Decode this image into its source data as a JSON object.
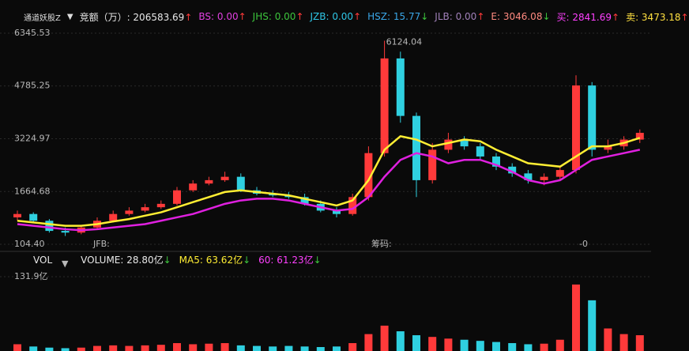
{
  "header": {
    "indicator": "通道妖股Z",
    "items": [
      {
        "text": "竞额（万）: 206583.69",
        "arrow": "↑",
        "color": "#e8e8e8"
      },
      {
        "text": "BS: 0.00",
        "arrow": "↑",
        "color": "#e040e0"
      },
      {
        "text": "JHS: 0.00",
        "arrow": "↑",
        "color": "#3cc43c"
      },
      {
        "text": "JZB: 0.00",
        "arrow": "↑",
        "color": "#2fc6e6"
      },
      {
        "text": "HSZ: 15.77",
        "arrow": "↓",
        "color": "#3aa7e8"
      },
      {
        "text": "JLB: 0.00",
        "arrow": "↑",
        "color": "#a080b8"
      },
      {
        "text": "E: 3046.08",
        "arrow": "↓",
        "color": "#ff8a80"
      },
      {
        "text": "买: 2841.69",
        "arrow": "↑",
        "color": "#ff40ff"
      },
      {
        "text": "卖: 3473.18",
        "arrow": "↑",
        "color": "#ffe040"
      }
    ]
  },
  "chart_data": {
    "type": "candlestick",
    "ylim": [
      104.4,
      6345.53
    ],
    "yticks": [
      6345.53,
      4785.25,
      3224.97,
      1664.68,
      {
        "value": 104.4,
        "label": "104.40"
      }
    ],
    "grid": true,
    "up_color": "#ff3a3a",
    "down_color": "#2fd0e0",
    "open": [
      900,
      1000,
      800,
      500,
      450,
      600,
      800,
      1000,
      1100,
      1200,
      1300,
      1700,
      1900,
      2000,
      2100,
      1700,
      1600,
      1550,
      1500,
      1300,
      1100,
      1000,
      1500,
      2800,
      5600,
      3900,
      2000,
      2900,
      3200,
      3000,
      2700,
      2400,
      2200,
      2000,
      2100,
      2300,
      4800,
      2900,
      3000,
      3200
    ],
    "high": [
      1100,
      1050,
      850,
      600,
      650,
      900,
      1100,
      1200,
      1300,
      1400,
      1800,
      2000,
      2100,
      2250,
      2200,
      1800,
      1700,
      1650,
      1600,
      1400,
      1200,
      1600,
      3000,
      6124.04,
      5800,
      4000,
      3100,
      3400,
      3300,
      3100,
      2800,
      2500,
      2300,
      2200,
      2400,
      5100,
      4900,
      3200,
      3300,
      3500
    ],
    "low": [
      800,
      750,
      450,
      350,
      400,
      550,
      750,
      950,
      1050,
      1150,
      1250,
      1650,
      1850,
      1950,
      1650,
      1550,
      1500,
      1450,
      1250,
      1050,
      900,
      950,
      1400,
      2700,
      3700,
      1500,
      1900,
      2800,
      2900,
      2600,
      2300,
      2100,
      1900,
      1850,
      2000,
      2200,
      2700,
      2800,
      2900,
      3100
    ],
    "close": [
      1000,
      800,
      500,
      450,
      600,
      800,
      1000,
      1100,
      1200,
      1300,
      1700,
      1900,
      2000,
      2100,
      1700,
      1600,
      1550,
      1500,
      1300,
      1100,
      1000,
      1500,
      2800,
      5600,
      3900,
      2000,
      2900,
      3200,
      3000,
      2700,
      2400,
      2200,
      2000,
      2100,
      2300,
      4800,
      2900,
      3000,
      3200,
      3400
    ],
    "lines": [
      {
        "color": "#ffee33",
        "values": [
          800,
          750,
          700,
          650,
          650,
          700,
          780,
          850,
          950,
          1050,
          1200,
          1350,
          1500,
          1650,
          1700,
          1650,
          1600,
          1550,
          1450,
          1350,
          1250,
          1400,
          2000,
          2900,
          3300,
          3200,
          3000,
          3100,
          3200,
          3150,
          2900,
          2700,
          2500,
          2450,
          2400,
          2700,
          3000,
          3000,
          3100,
          3250
        ]
      },
      {
        "color": "#e020e0",
        "values": [
          700,
          650,
          600,
          550,
          520,
          550,
          600,
          650,
          700,
          800,
          900,
          1000,
          1150,
          1300,
          1400,
          1450,
          1450,
          1400,
          1300,
          1200,
          1100,
          1150,
          1500,
          2100,
          2600,
          2800,
          2700,
          2500,
          2600,
          2600,
          2450,
          2250,
          2000,
          1900,
          2000,
          2300,
          2600,
          2700,
          2800,
          2900
        ]
      }
    ],
    "annotation": "6124.04",
    "bottom_labels": [
      "JFB:",
      "筹码:",
      "-0"
    ],
    "volume": {
      "header": [
        {
          "text": "VOL",
          "color": "#e8e8e8"
        },
        {
          "text": "VOLUME: 28.80亿",
          "arrow": "↓",
          "color": "#e8e8e8"
        },
        {
          "text": "MA5: 63.62亿",
          "arrow": "↓",
          "color": "#ffee33"
        },
        {
          "text": "60: 61.23亿",
          "arrow": "↓",
          "color": "#ff40ff"
        }
      ],
      "ylim": [
        0,
        131.9
      ],
      "yticks": [
        {
          "value": 131.9,
          "label": "131.9亿"
        }
      ],
      "values": [
        12,
        8,
        6,
        5,
        6,
        9,
        10,
        9,
        10,
        11,
        14,
        12,
        13,
        14,
        10,
        9,
        8,
        9,
        8,
        7,
        8,
        14,
        30,
        45,
        35,
        28,
        25,
        22,
        20,
        18,
        16,
        14,
        12,
        13,
        20,
        118,
        90,
        40,
        30,
        28
      ]
    }
  }
}
